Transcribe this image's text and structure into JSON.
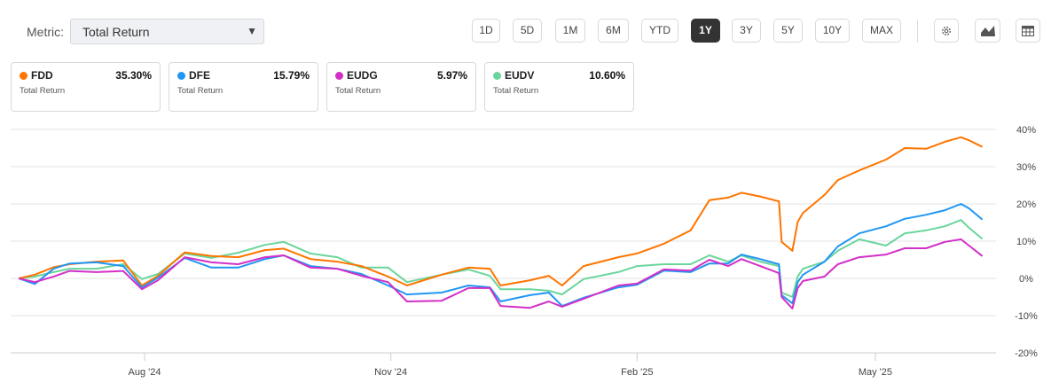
{
  "toolbar": {
    "metric_label": "Metric:",
    "metric_value": "Total Return",
    "ranges": [
      "1D",
      "5D",
      "1M",
      "6M",
      "YTD",
      "1Y",
      "3Y",
      "5Y",
      "10Y",
      "MAX"
    ],
    "active_range": "1Y",
    "icons": [
      "gear-icon",
      "area-chart-icon",
      "table-icon"
    ]
  },
  "legend_cards": [
    {
      "ticker": "FDD",
      "value": "35.30%",
      "sub": "Total Return",
      "color": "#ff7500"
    },
    {
      "ticker": "DFE",
      "value": "15.79%",
      "sub": "Total Return",
      "color": "#2196f3"
    },
    {
      "ticker": "EUDG",
      "value": "5.97%",
      "sub": "Total Return",
      "color": "#d32fc7"
    },
    {
      "ticker": "EUDV",
      "value": "10.60%",
      "sub": "Total Return",
      "color": "#6bd59c"
    }
  ],
  "chart_data": {
    "type": "line",
    "y_ticks": [
      40,
      30,
      20,
      10,
      0,
      -10,
      -20
    ],
    "y_tick_labels": [
      "40%",
      "30%",
      "20%",
      "10%",
      "0%",
      "-10%",
      "-20%"
    ],
    "ylim": [
      -20,
      40
    ],
    "x_ticks": [
      "2024-08-01",
      "2024-11-01",
      "2025-02-01",
      "2025-05-01"
    ],
    "x_tick_labels": [
      "Aug '24",
      "Nov '24",
      "Feb '25",
      "May '25"
    ],
    "grid": true,
    "x": [
      "2024-06-15",
      "2024-06-21",
      "2024-06-28",
      "2024-07-04",
      "2024-07-14",
      "2024-07-24",
      "2024-07-31",
      "2024-08-06",
      "2024-08-16",
      "2024-08-26",
      "2024-09-05",
      "2024-09-15",
      "2024-09-22",
      "2024-10-02",
      "2024-10-12",
      "2024-10-21",
      "2024-10-31",
      "2024-11-07",
      "2024-11-20",
      "2024-11-30",
      "2024-12-08",
      "2024-12-12",
      "2024-12-23",
      "2024-12-30",
      "2025-01-04",
      "2025-01-12",
      "2025-01-25",
      "2025-02-01",
      "2025-02-11",
      "2025-02-21",
      "2025-02-28",
      "2025-03-07",
      "2025-03-12",
      "2025-03-19",
      "2025-03-26",
      "2025-03-27",
      "2025-03-31",
      "2025-04-02",
      "2025-04-04",
      "2025-04-12",
      "2025-04-17",
      "2025-04-25",
      "2025-05-05",
      "2025-05-12",
      "2025-05-20",
      "2025-05-27",
      "2025-06-02",
      "2025-06-05",
      "2025-06-10"
    ],
    "series": [
      {
        "name": "FDD",
        "color": "#ff7500",
        "values": [
          0,
          1,
          3,
          3.8,
          4.5,
          4.8,
          -1.9,
          0.7,
          7,
          6,
          5.7,
          7.6,
          8,
          5.2,
          4.5,
          3.3,
          0.5,
          -1.9,
          1,
          2.9,
          2.6,
          -1.9,
          -0.5,
          0.7,
          -1.9,
          3.3,
          5.7,
          6.7,
          9.3,
          12.9,
          21,
          21.7,
          23,
          22,
          20.7,
          9.8,
          7.4,
          15.2,
          17.6,
          22.4,
          26.4,
          29,
          31.9,
          35,
          34.8,
          36.7,
          37.9,
          37.1,
          35.3
        ]
      },
      {
        "name": "DFE",
        "color": "#2196f3",
        "values": [
          0,
          -1.5,
          2.6,
          4,
          4.3,
          3.3,
          -2.4,
          0.2,
          5.5,
          2.9,
          2.9,
          5.2,
          6.2,
          3.3,
          2.6,
          1.2,
          -1.9,
          -4.3,
          -3.8,
          -1.9,
          -2.4,
          -6.2,
          -4.5,
          -3.8,
          -7.4,
          -5.2,
          -2.4,
          -1.7,
          2.1,
          1.7,
          4,
          4,
          6.4,
          5.2,
          3.8,
          -4.5,
          -6.7,
          -1,
          1,
          4.5,
          8.6,
          12.1,
          14,
          16,
          17.1,
          18.3,
          20,
          18.8,
          15.8
        ]
      },
      {
        "name": "EUDG",
        "color": "#d32fc7",
        "values": [
          0,
          -1,
          0.5,
          2,
          1.7,
          2,
          -2.9,
          -0.5,
          5.7,
          4.3,
          3.8,
          5.7,
          6.2,
          2.9,
          2.6,
          0.7,
          -1,
          -6.2,
          -6,
          -2.6,
          -2.6,
          -7.4,
          -7.9,
          -6.2,
          -7.6,
          -5.5,
          -1.9,
          -1.4,
          2.4,
          2.1,
          5,
          3.3,
          5.2,
          3.3,
          1.4,
          -5,
          -8.1,
          -2.6,
          -0.7,
          0.5,
          3.8,
          5.7,
          6.4,
          8.1,
          8.1,
          9.8,
          10.5,
          8.8,
          6.0
        ]
      },
      {
        "name": "EUDV",
        "color": "#6bd59c",
        "values": [
          0,
          0.5,
          1.7,
          2.6,
          2.6,
          3.8,
          -0.2,
          1.2,
          6.7,
          5.5,
          6.9,
          9,
          9.8,
          6.7,
          5.7,
          2.9,
          2.9,
          -1,
          1,
          2.4,
          0.7,
          -2.9,
          -2.9,
          -3.3,
          -4.3,
          -0.2,
          1.7,
          3.3,
          3.8,
          3.8,
          6.2,
          4.5,
          6.2,
          4.5,
          3.3,
          -3.8,
          -5,
          0.5,
          2.6,
          4.5,
          7.4,
          10.5,
          8.8,
          12.1,
          12.9,
          14,
          15.7,
          13.6,
          10.6
        ]
      }
    ]
  }
}
